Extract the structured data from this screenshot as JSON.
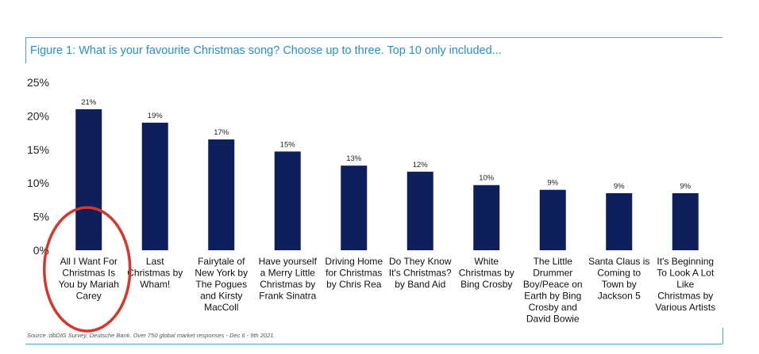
{
  "figure": {
    "title": "Figure 1: What is your favourite Christmas song? Choose up to three. Top 10 only included...",
    "source": "Source :dbDIG Survey, Deutsche Bank. Over 750 global market responses - Dec 6 - 9th 2021."
  },
  "colors": {
    "bar": "#0e1f5c",
    "frame": "#4aa3d6",
    "title": "#2a8fcf",
    "highlight_circle": "#d9362b"
  },
  "chart_data": {
    "type": "bar",
    "title": "Figure 1: What is your favourite Christmas song? Choose up to three. Top 10 only included...",
    "xlabel": "",
    "ylabel": "",
    "ylim": [
      0,
      25
    ],
    "yticks": [
      "0%",
      "5%",
      "10%",
      "15%",
      "20%",
      "25%"
    ],
    "grid": false,
    "categories": [
      [
        "All I Want For",
        "Christmas Is",
        "You by Mariah",
        "Carey"
      ],
      [
        "Last",
        "Christmas by",
        "Wham!"
      ],
      [
        "Fairytale of",
        "New York by",
        "The Pogues",
        "and Kirsty",
        "MacColl"
      ],
      [
        "Have yourself",
        "a Merry Little",
        "Christmas by",
        "Frank Sinatra"
      ],
      [
        "Driving Home",
        "for Christmas",
        "by Chris Rea"
      ],
      [
        "Do They Know",
        "It's Christmas?",
        "by Band Aid"
      ],
      [
        "White",
        "Christmas by",
        "Bing Crosby"
      ],
      [
        "The Little",
        "Drummer",
        "Boy/Peace on",
        "Earth by Bing",
        "Crosby and",
        "David Bowie"
      ],
      [
        "Santa Claus is",
        "Coming to",
        "Town by",
        "Jackson 5"
      ],
      [
        "It's Beginning",
        "To Look A Lot",
        "Like",
        "Christmas by",
        "Various Artists"
      ]
    ],
    "values": [
      21,
      19,
      16.5,
      14.7,
      12.6,
      11.7,
      9.7,
      9,
      8.5,
      8.5
    ],
    "data_labels": [
      "21%",
      "19%",
      "17%",
      "15%",
      "13%",
      "12%",
      "10%",
      "9%",
      "9%",
      "9%"
    ],
    "highlighted_index": 0
  }
}
